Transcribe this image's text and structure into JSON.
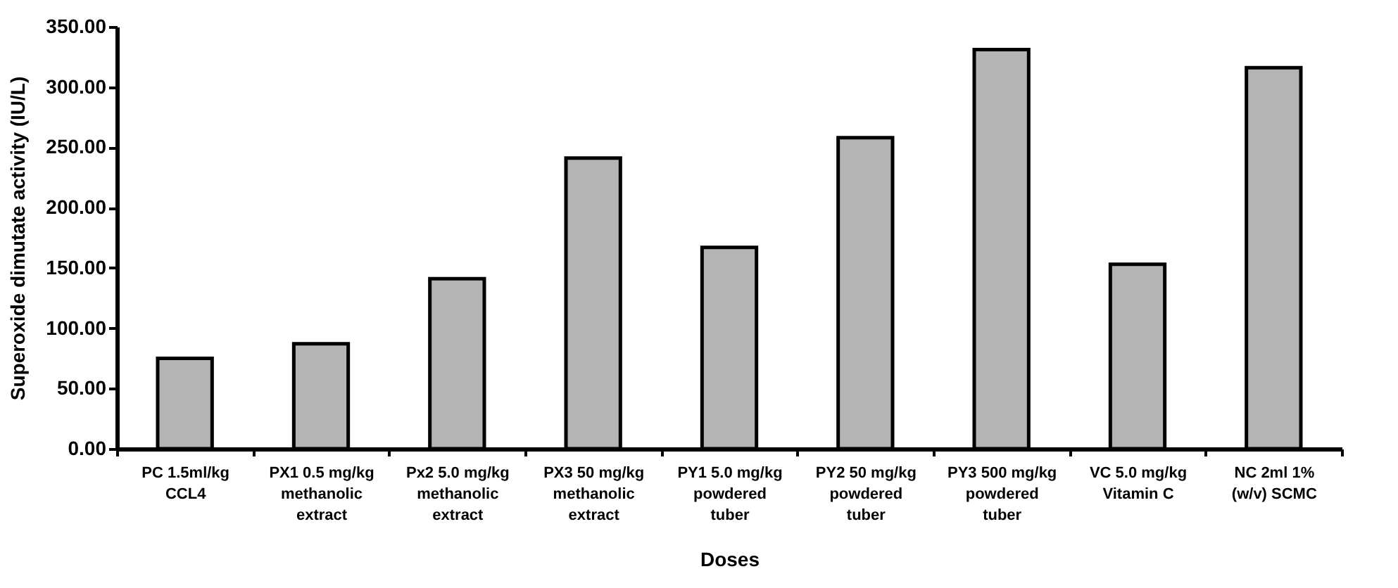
{
  "chart_data": {
    "type": "bar",
    "xlabel": "Doses",
    "ylabel": "Superoxide dimutate activity (IU/L)",
    "categories": [
      "PC 1.5ml/kg\nCCL4",
      "PX1 0.5 mg/kg\nmethanolic\nextract",
      "Px2 5.0 mg/kg\nmethanolic\nextract",
      "PX3 50 mg/kg\nmethanolic\nextract",
      "PY1 5.0 mg/kg\npowdered\ntuber",
      "PY2 50 mg/kg\npowdered\ntuber",
      "PY3 500 mg/kg\npowdered\ntuber",
      "VC 5.0 mg/kg\nVitamin C",
      "NC 2ml 1%\n(w/v) SCMC"
    ],
    "values": [
      75,
      87,
      141,
      241,
      167,
      258,
      331,
      153,
      316
    ],
    "color": "#b4b4b4",
    "ylim": [
      0,
      350
    ],
    "yticks": [
      {
        "value": 0,
        "label": "0.00"
      },
      {
        "value": 50,
        "label": "50.00"
      },
      {
        "value": 100,
        "label": "100.00"
      },
      {
        "value": 150,
        "label": "150.00"
      },
      {
        "value": 200,
        "label": "200.00"
      },
      {
        "value": 250,
        "label": "250.00"
      },
      {
        "value": 300,
        "label": "300.00"
      },
      {
        "value": 350,
        "label": "350.00"
      }
    ],
    "grid": false
  }
}
